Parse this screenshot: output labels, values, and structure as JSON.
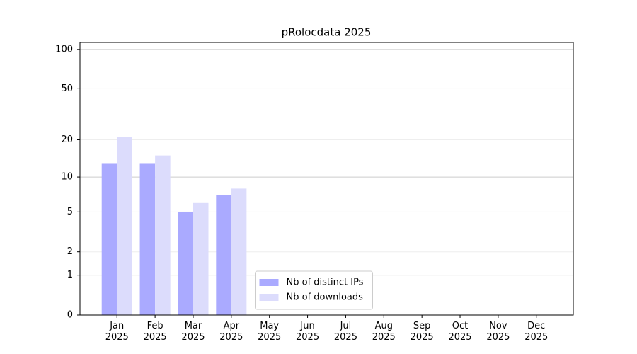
{
  "chart_data": {
    "type": "bar",
    "title": "pRolocdata 2025",
    "categories": [
      "Jan\n2025",
      "Feb\n2025",
      "Mar\n2025",
      "Apr\n2025",
      "May\n2025",
      "Jun\n2025",
      "Jul\n2025",
      "Aug\n2025",
      "Sep\n2025",
      "Oct\n2025",
      "Nov\n2025",
      "Dec\n2025"
    ],
    "series": [
      {
        "name": "Nb of distinct IPs",
        "color": "#aaaaff",
        "values": [
          13,
          13,
          5,
          7,
          null,
          null,
          null,
          null,
          null,
          null,
          null,
          null
        ]
      },
      {
        "name": "Nb of downloads",
        "color": "#dcdcfc",
        "values": [
          21,
          15,
          6,
          8,
          null,
          null,
          null,
          null,
          null,
          null,
          null,
          null
        ]
      }
    ],
    "yscale": "log1p",
    "ylim": [
      0,
      113
    ],
    "yticks": [
      0,
      1,
      2,
      5,
      10,
      20,
      50,
      100
    ],
    "grid": true,
    "legend": "lower center"
  }
}
